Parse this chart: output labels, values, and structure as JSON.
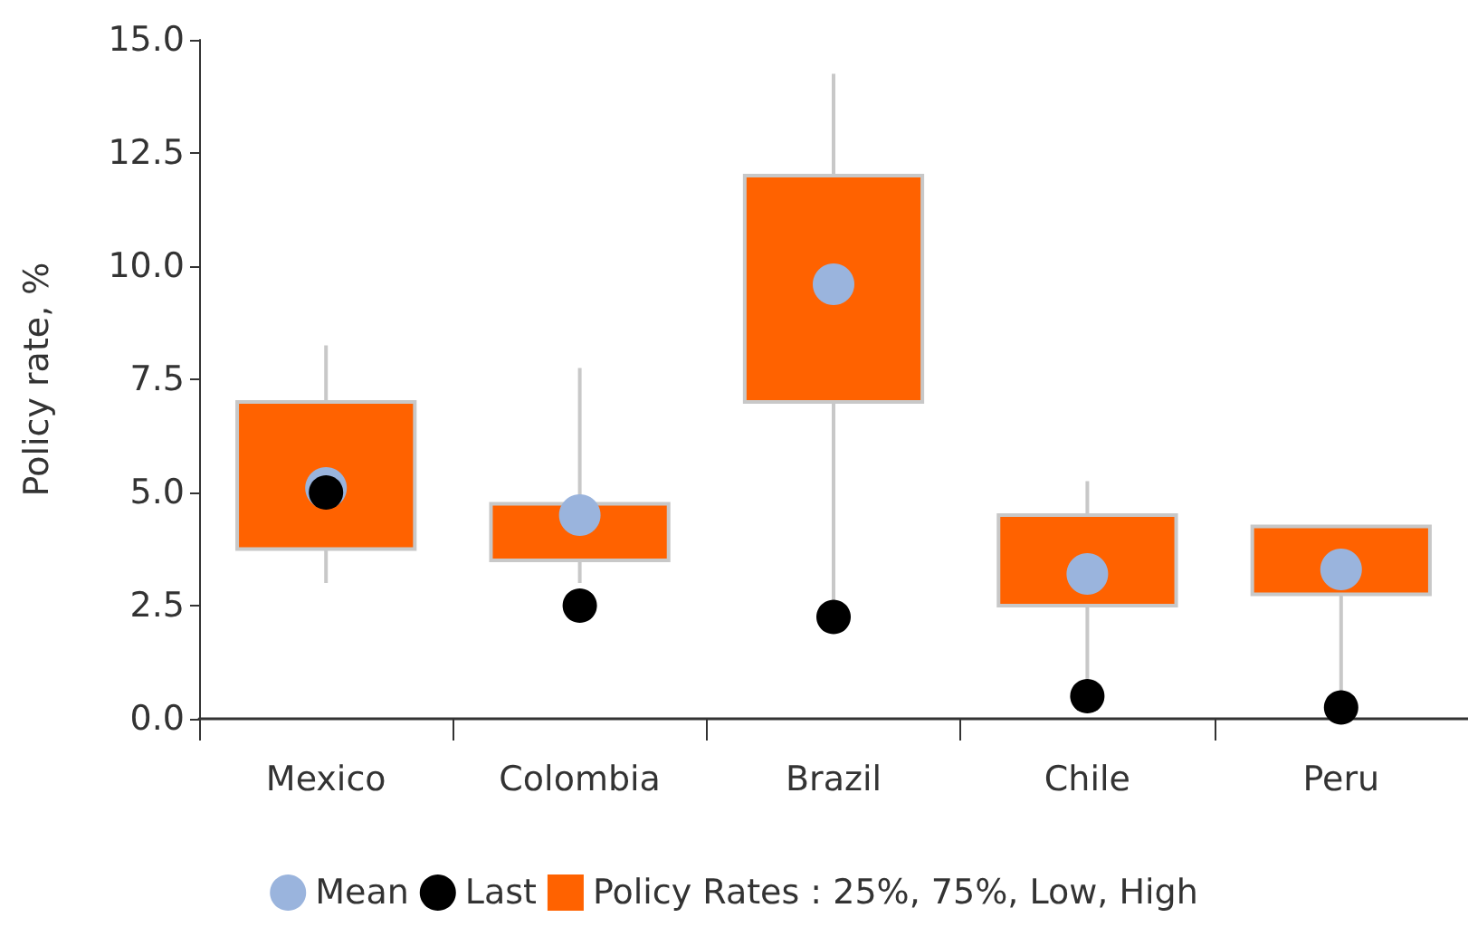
{
  "chart_data": {
    "type": "box",
    "ylabel": "Policy rate, %",
    "categories": [
      "Mexico",
      "Colombia",
      "Brazil",
      "Chile",
      "Peru"
    ],
    "ylim": [
      0,
      15
    ],
    "yticks": [
      {
        "value": 0,
        "label": "0.0"
      },
      2.5,
      {
        "value": 5,
        "label": "5.0"
      },
      7.5,
      {
        "value": 10,
        "label": "10.0"
      },
      12.5,
      {
        "value": 15,
        "label": "15.0"
      }
    ],
    "legend": "bottom",
    "marker": "circle",
    "series": [
      {
        "name": "Mean",
        "type": "scatter",
        "color": "#9ab4dd",
        "x": [
          "Mexico",
          "Colombia",
          "Brazil",
          "Chile",
          "Peru"
        ],
        "values": [
          5.1,
          4.5,
          9.6,
          3.2,
          3.3
        ]
      },
      {
        "name": "Last",
        "type": "scatter",
        "color": "#000000",
        "x": [
          "Mexico",
          "Colombia",
          "Brazil",
          "Chile",
          "Peru"
        ],
        "values": [
          5.0,
          2.5,
          2.25,
          0.5,
          0.25
        ]
      },
      {
        "name": "Policy Rates : 25%, 75%, Low, High",
        "color": "#ff6200",
        "boxes": [
          {
            "low": 3.0,
            "q1": 3.75,
            "median": null,
            "q3": 7.0,
            "high": 8.25
          },
          {
            "low": 3.0,
            "q1": 3.5,
            "median": null,
            "q3": 4.75,
            "high": 7.75
          },
          {
            "low": 2.25,
            "q1": 7.0,
            "median": null,
            "q3": 12.0,
            "high": 14.25
          },
          {
            "low": 0.5,
            "q1": 2.5,
            "median": null,
            "q3": 4.5,
            "high": 5.25
          },
          {
            "low": 0.25,
            "q1": 2.75,
            "median": null,
            "q3": 4.25,
            "high": 4.25
          }
        ]
      }
    ]
  }
}
